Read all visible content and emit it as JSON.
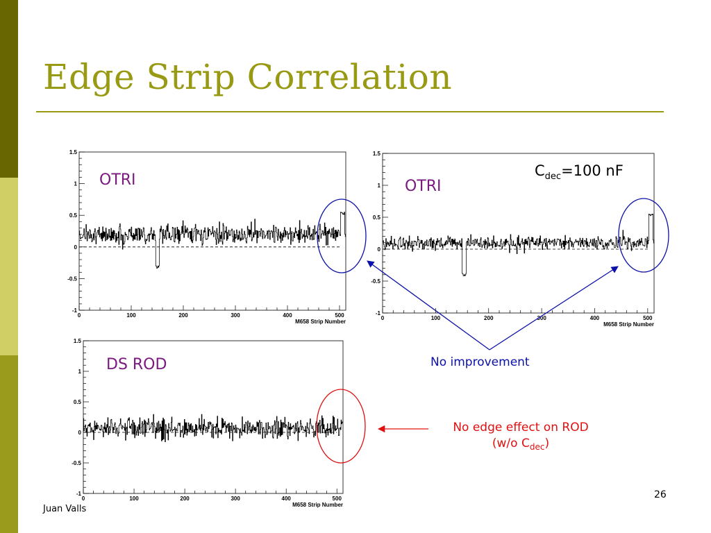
{
  "slide": {
    "title": "Edge Strip Correlation",
    "author": "Juan Valls",
    "page_number": "26",
    "colors": {
      "title": "#999a13",
      "panel_label": "#7a1a80",
      "blue_annotation": "#0a10a8",
      "red_annotation": "#e01010"
    }
  },
  "annotations": {
    "cdec_main": "C",
    "cdec_sub": "dec",
    "cdec_value": "=100 nF",
    "no_improvement": "No improvement",
    "no_edge_line1": "No edge effect on ROD",
    "no_edge_open": "(w/o C",
    "no_edge_sub": "dec",
    "no_edge_close": ")"
  },
  "chart_data": [
    {
      "type": "line",
      "label": "OTRI",
      "xlabel": "M658 Strip Number",
      "xlim": [
        0,
        512
      ],
      "ylim": [
        -1,
        1.5
      ],
      "xticks": [
        0,
        100,
        200,
        300,
        400,
        500
      ],
      "yticks": [
        -1,
        -0.5,
        0,
        0.5,
        1,
        1.5
      ],
      "reference_line": 0,
      "noise_baseline": 0.2,
      "noise_amplitude": 0.07,
      "features": [
        {
          "x_start": 147,
          "x_end": 153,
          "y": -0.3
        },
        {
          "x_start": 502,
          "x_end": 509,
          "y": 0.55
        }
      ]
    },
    {
      "type": "line",
      "label": "OTRI",
      "xlabel": "M658 Strip Number",
      "xlim": [
        0,
        512
      ],
      "ylim": [
        -1,
        1.5
      ],
      "xticks": [
        0,
        100,
        200,
        300,
        400,
        500
      ],
      "yticks": [
        -1,
        -0.5,
        0,
        0.5,
        1,
        1.5
      ],
      "reference_line": 0,
      "noise_baseline": 0.1,
      "noise_amplitude": 0.05,
      "features": [
        {
          "x_start": 150,
          "x_end": 157,
          "y": -0.38
        },
        {
          "x_start": 502,
          "x_end": 509,
          "y": 0.55
        }
      ]
    },
    {
      "type": "line",
      "label": "DS ROD",
      "xlabel": "M658 Strip Number",
      "xlim": [
        0,
        512
      ],
      "ylim": [
        -1,
        1.5
      ],
      "xticks": [
        0,
        100,
        200,
        300,
        400,
        500
      ],
      "yticks": [
        -1,
        -0.5,
        0,
        0.5,
        1,
        1.5
      ],
      "reference_line": 0,
      "noise_baseline": 0.07,
      "noise_amplitude": 0.08,
      "features": []
    }
  ]
}
